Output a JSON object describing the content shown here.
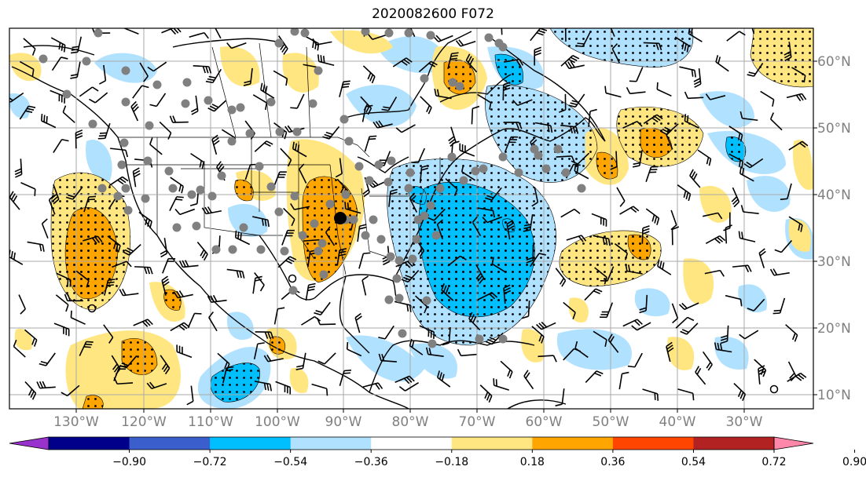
{
  "title": "2020082600 F072",
  "lon_labels": [
    "130°W",
    "120°W",
    "110°W",
    "100°W",
    "90°W",
    "80°W",
    "70°W",
    "60°W",
    "50°W",
    "40°W",
    "30°W"
  ],
  "lat_labels": [
    "60°N",
    "50°N",
    "40°N",
    "30°N",
    "20°N",
    "10°N"
  ],
  "colorbar": {
    "ticks": [
      "−0.90",
      "−0.72",
      "−0.54",
      "−0.36",
      "−0.18",
      "0.18",
      "0.36",
      "0.54",
      "0.72",
      "0.90"
    ],
    "colors": [
      "#9932cc",
      "#00008b",
      "#3a5fcd",
      "#00bfff",
      "#b0e2ff",
      "#ffffff",
      "#ffe680",
      "#ffa500",
      "#ff4500",
      "#b22222",
      "#ff88aa"
    ]
  },
  "colors": {
    "neg_weak": "#b0e2ff",
    "neg_med": "#00bfff",
    "pos_weak": "#ffe680",
    "pos_med": "#ffa500",
    "stations": "#808080",
    "grid": "#a9a9a9"
  }
}
